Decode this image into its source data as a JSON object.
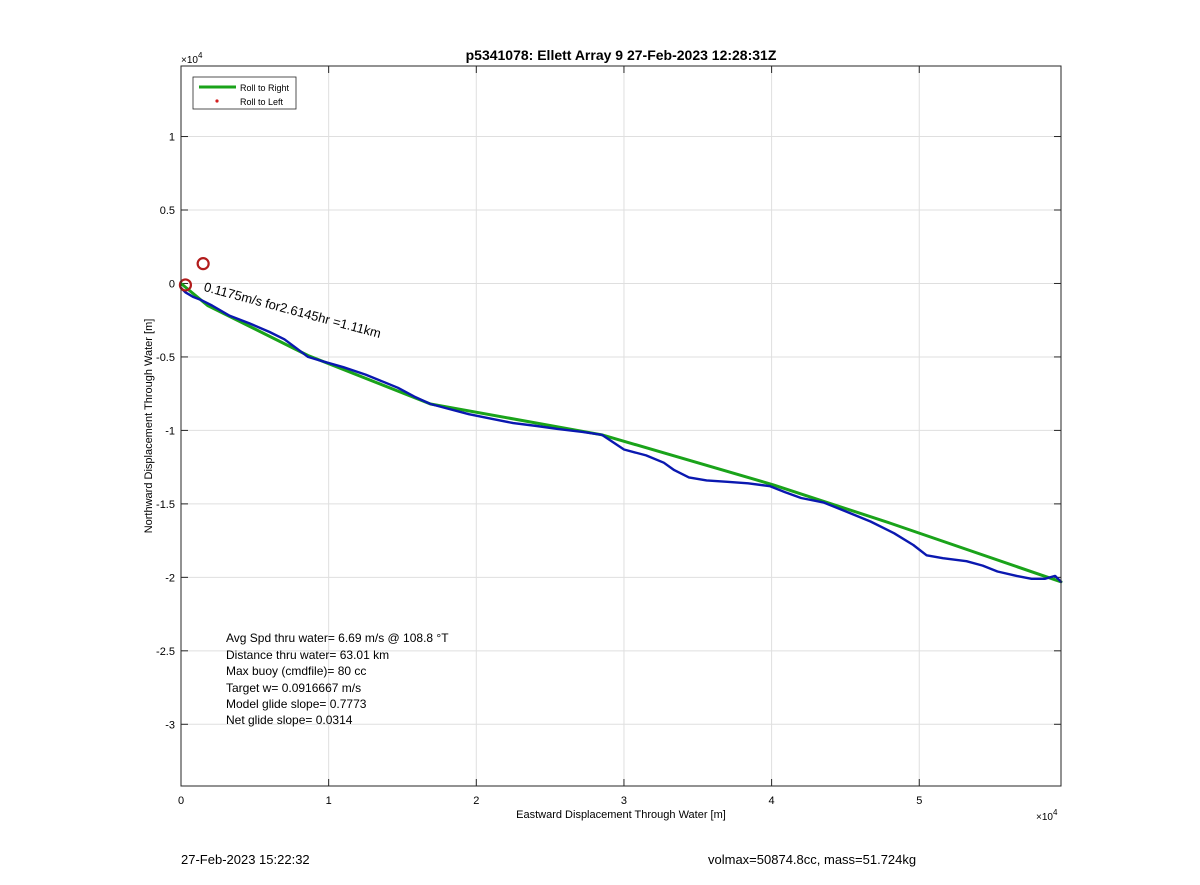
{
  "chart_data": {
    "type": "line",
    "title": "p5341078: Ellett Array 9 27-Feb-2023 12:28:31Z",
    "xlabel": "Eastward Displacement Through Water [m]",
    "ylabel": "Northward Displacement Through Water [m]",
    "xlim": [
      0,
      59600
    ],
    "ylim": [
      -34200,
      14800
    ],
    "x_ticks": [
      0,
      10000,
      20000,
      30000,
      40000,
      50000
    ],
    "x_tick_labels": [
      "0",
      "1",
      "2",
      "3",
      "4",
      "5"
    ],
    "y_ticks": [
      10000,
      5000,
      0,
      -5000,
      -10000,
      -15000,
      -20000,
      -25000,
      -30000
    ],
    "y_tick_labels": [
      "1",
      "0.5",
      "0",
      "-0.5",
      "-1",
      "-1.5",
      "-2",
      "-2.5",
      "-3"
    ],
    "x_exponent": "×10",
    "x_exponent_power": "4",
    "y_exponent": "×10",
    "y_exponent_power": "4",
    "grid": true,
    "legend_position": "top-left",
    "legend": [
      {
        "label": "Roll to Right",
        "marker": "line",
        "color": "#1aa31a"
      },
      {
        "label": "Roll to Left",
        "marker": "dot",
        "color": "#d42020"
      }
    ],
    "series": [
      {
        "name": "Roll to Right",
        "style": "line",
        "color": "#1aa31a",
        "x": [
          0,
          1800,
          8600,
          16900,
          28500,
          40100,
          48000,
          59600
        ],
        "y": [
          0,
          -1500,
          -4900,
          -8200,
          -10300,
          -13700,
          -16300,
          -20300
        ]
      },
      {
        "style": "line",
        "color": "#0a18b0",
        "x": [
          0,
          300,
          800,
          1300,
          2100,
          3300,
          4600,
          6000,
          7000,
          7800,
          8600,
          9600,
          11000,
          12500,
          14700,
          15800,
          16900,
          18000,
          19500,
          21000,
          22500,
          24100,
          25500,
          27200,
          28500,
          30000,
          31500,
          32700,
          33400,
          34400,
          35600,
          37000,
          38400,
          39900,
          40900,
          42000,
          43500,
          45000,
          46700,
          48300,
          49600,
          50500,
          51600,
          53200,
          54300,
          55300,
          56600,
          57600,
          58500,
          59200,
          59600
        ],
        "y": [
          -300,
          -600,
          -900,
          -1100,
          -1500,
          -2200,
          -2700,
          -3300,
          -3800,
          -4400,
          -5000,
          -5300,
          -5700,
          -6200,
          -7100,
          -7700,
          -8200,
          -8500,
          -8900,
          -9200,
          -9500,
          -9700,
          -9900,
          -10100,
          -10300,
          -11300,
          -11700,
          -12200,
          -12700,
          -13200,
          -13400,
          -13500,
          -13600,
          -13800,
          -14200,
          -14600,
          -14900,
          -15500,
          -16200,
          -17000,
          -17800,
          -18500,
          -18700,
          -18900,
          -19200,
          -19600,
          -19900,
          -20100,
          -20100,
          -19900,
          -20300
        ]
      }
    ],
    "markers": [
      {
        "shape": "circle",
        "color": "#b21c1c",
        "x": 1500,
        "y": 1350
      },
      {
        "shape": "circle",
        "color": "#b21c1c",
        "x": 300,
        "y": -100
      }
    ],
    "annotations": [
      {
        "text": "0.1175m/s for2.6145hr =1.11km",
        "x": 1500,
        "y": -500,
        "rotation_deg": 15
      }
    ],
    "stats": [
      "Avg Spd thru water=  6.69 m/s @ 108.8 °T",
      "Distance thru water= 63.01 km",
      "Max buoy (cmdfile)= 80 cc",
      "Target w= 0.0916667 m/s",
      "Model glide slope= 0.7773",
      "Net glide slope= 0.0314"
    ]
  },
  "footer": {
    "timestamp": "27-Feb-2023 15:22:32",
    "volmax_mass": "volmax=50874.8cc, mass=51.724kg"
  }
}
